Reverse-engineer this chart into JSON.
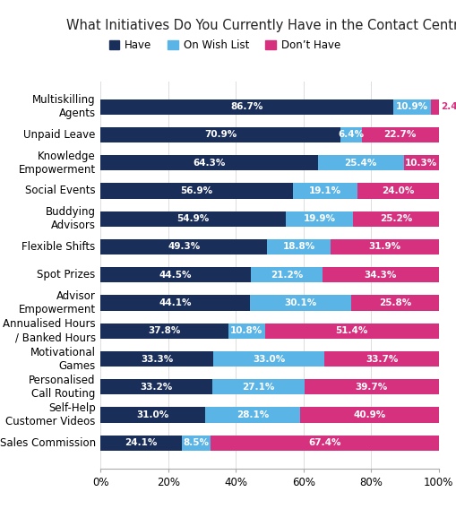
{
  "title": "What Initiatives Do You Currently Have in the Contact Centre?",
  "categories": [
    "Multiskilling\nAgents",
    "Unpaid Leave",
    "Knowledge\nEmpowerment",
    "Social Events",
    "Buddying\nAdvisors",
    "Flexible Shifts",
    "Spot Prizes",
    "Advisor\nEmpowerment",
    "Annualised Hours\n/ Banked Hours",
    "Motivational\nGames",
    "Personalised\nCall Routing",
    "Self-Help\nCustomer Videos",
    "Sales Commission"
  ],
  "have": [
    86.7,
    70.9,
    64.3,
    56.9,
    54.9,
    49.3,
    44.5,
    44.1,
    37.8,
    33.3,
    33.2,
    31.0,
    24.1
  ],
  "wish": [
    10.9,
    6.4,
    25.4,
    19.1,
    19.9,
    18.8,
    21.2,
    30.1,
    10.8,
    33.0,
    27.1,
    28.1,
    8.5
  ],
  "dont": [
    2.4,
    22.7,
    10.3,
    24.0,
    25.2,
    31.9,
    34.3,
    25.8,
    51.4,
    33.7,
    39.7,
    40.9,
    67.4
  ],
  "color_have": "#1a2e5a",
  "color_wish": "#5ab4e5",
  "color_dont": "#d6317e",
  "label_have": "Have",
  "label_wish": "On Wish List",
  "label_dont": "Don’t Have",
  "bar_height": 0.55,
  "background_color": "#ffffff",
  "label_fontsize": 7.5,
  "tick_fontsize": 8.5,
  "title_fontsize": 10.5,
  "legend_fontsize": 8.5
}
